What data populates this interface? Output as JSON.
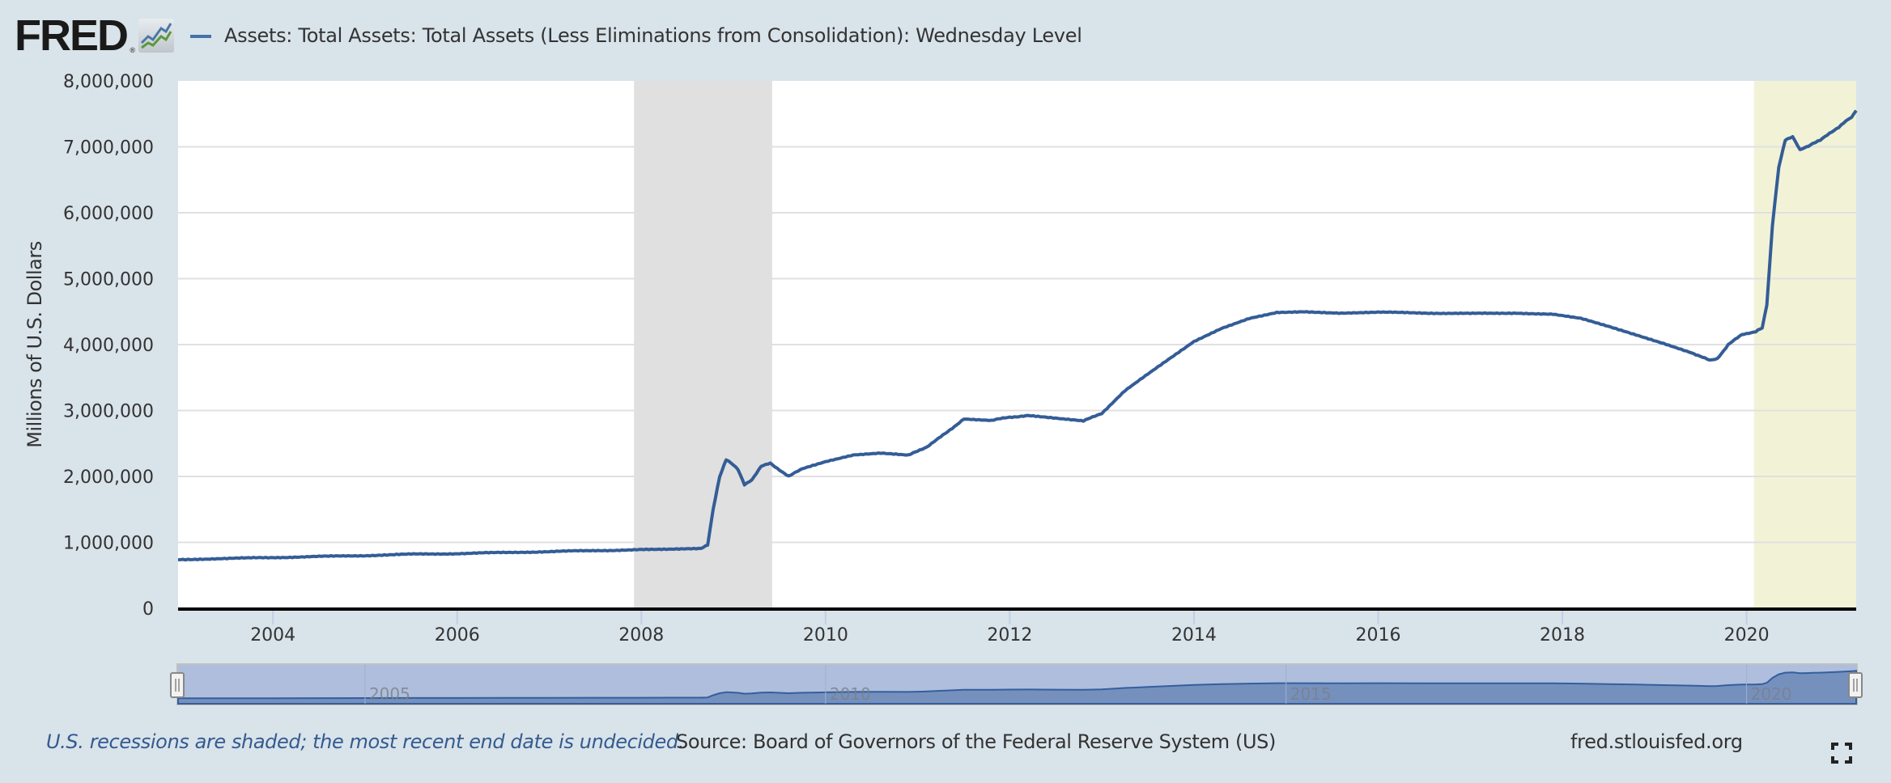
{
  "header": {
    "logo_text": "FRED",
    "logo_reg": "®",
    "logo_icon": "chart-line-icon"
  },
  "footer": {
    "recession_note": "U.S. recessions are shaded; the most recent end date is undecided.",
    "source": "Source: Board of Governors of the Federal Reserve System (US)",
    "url": "fred.stlouisfed.org",
    "fullscreen_icon": "fullscreen-icon"
  },
  "colors": {
    "background": "#d9e3ea",
    "plot_background": "#ffffff",
    "series_line": "#345d96",
    "recession_shade": "#e0e0e0",
    "current_recession_shade": "#f2f3d6",
    "navigator_bg": "#aebedc",
    "navigator_fill": "#7690bd",
    "gridline": "#e0e0e0",
    "note_text": "#335b8f"
  },
  "chart_data": {
    "type": "line",
    "title": "Assets: Total Assets: Total Assets (Less Eliminations from Consolidation): Wednesday Level",
    "legend": [
      "Assets: Total Assets: Total Assets (Less Eliminations from Consolidation): Wednesday Level"
    ],
    "legend_position": "top-left",
    "xlabel": "",
    "ylabel": "Millions of U.S. Dollars",
    "xlim": [
      2002.97,
      2021.19
    ],
    "ylim": [
      0,
      8000000
    ],
    "grid": true,
    "x_ticks": [
      2004,
      2006,
      2008,
      2010,
      2012,
      2014,
      2016,
      2018,
      2020
    ],
    "x_tick_labels": [
      "2004",
      "2006",
      "2008",
      "2010",
      "2012",
      "2014",
      "2016",
      "2018",
      "2020"
    ],
    "y_ticks": [
      0,
      1000000,
      2000000,
      3000000,
      4000000,
      5000000,
      6000000,
      7000000,
      8000000
    ],
    "y_tick_labels": [
      "0",
      "1,000,000",
      "2,000,000",
      "3,000,000",
      "4,000,000",
      "5,000,000",
      "6,000,000",
      "7,000,000",
      "8,000,000"
    ],
    "recessions": [
      {
        "start": 2007.92,
        "end": 2009.42,
        "label": "recession"
      },
      {
        "start": 2020.08,
        "end": 2021.19,
        "label": "recession (end undecided)"
      }
    ],
    "navigator_labels": [
      "2005",
      "2010",
      "2015",
      "2020"
    ],
    "series": [
      {
        "name": "Total Assets",
        "x": [
          2002.97,
          2003.5,
          2004.0,
          2004.5,
          2005.0,
          2005.5,
          2006.0,
          2006.5,
          2007.0,
          2007.5,
          2008.0,
          2008.3,
          2008.65,
          2008.72,
          2008.78,
          2008.85,
          2008.92,
          2008.98,
          2009.05,
          2009.12,
          2009.2,
          2009.3,
          2009.4,
          2009.5,
          2009.6,
          2009.75,
          2010.0,
          2010.3,
          2010.6,
          2010.9,
          2011.1,
          2011.3,
          2011.5,
          2011.8,
          2012.0,
          2012.2,
          2012.5,
          2012.8,
          2013.0,
          2013.25,
          2013.5,
          2013.75,
          2014.0,
          2014.3,
          2014.6,
          2014.9,
          2015.2,
          2015.6,
          2016.0,
          2016.5,
          2017.0,
          2017.5,
          2017.9,
          2018.2,
          2018.5,
          2018.8,
          2019.1,
          2019.4,
          2019.6,
          2019.68,
          2019.8,
          2019.95,
          2020.1,
          2020.17,
          2020.22,
          2020.28,
          2020.35,
          2020.42,
          2020.5,
          2020.58,
          2020.65,
          2020.72,
          2020.8,
          2020.9,
          2021.0,
          2021.08,
          2021.14,
          2021.19
        ],
        "values": [
          740000,
          755000,
          770000,
          785000,
          800000,
          820000,
          830000,
          845000,
          860000,
          875000,
          890000,
          895000,
          905000,
          960000,
          1500000,
          2000000,
          2250000,
          2200000,
          2100000,
          1880000,
          1950000,
          2150000,
          2200000,
          2100000,
          2000000,
          2120000,
          2220000,
          2320000,
          2350000,
          2320000,
          2450000,
          2650000,
          2870000,
          2850000,
          2900000,
          2920000,
          2880000,
          2840000,
          2960000,
          3300000,
          3550000,
          3800000,
          4050000,
          4250000,
          4400000,
          4490000,
          4500000,
          4480000,
          4490000,
          4480000,
          4470000,
          4480000,
          4460000,
          4400000,
          4280000,
          4150000,
          4020000,
          3880000,
          3760000,
          3780000,
          4000000,
          4150000,
          4200000,
          4250000,
          4600000,
          5800000,
          6700000,
          7100000,
          7150000,
          6950000,
          7000000,
          7050000,
          7100000,
          7200000,
          7300000,
          7400000,
          7450000,
          7550000
        ]
      }
    ]
  }
}
